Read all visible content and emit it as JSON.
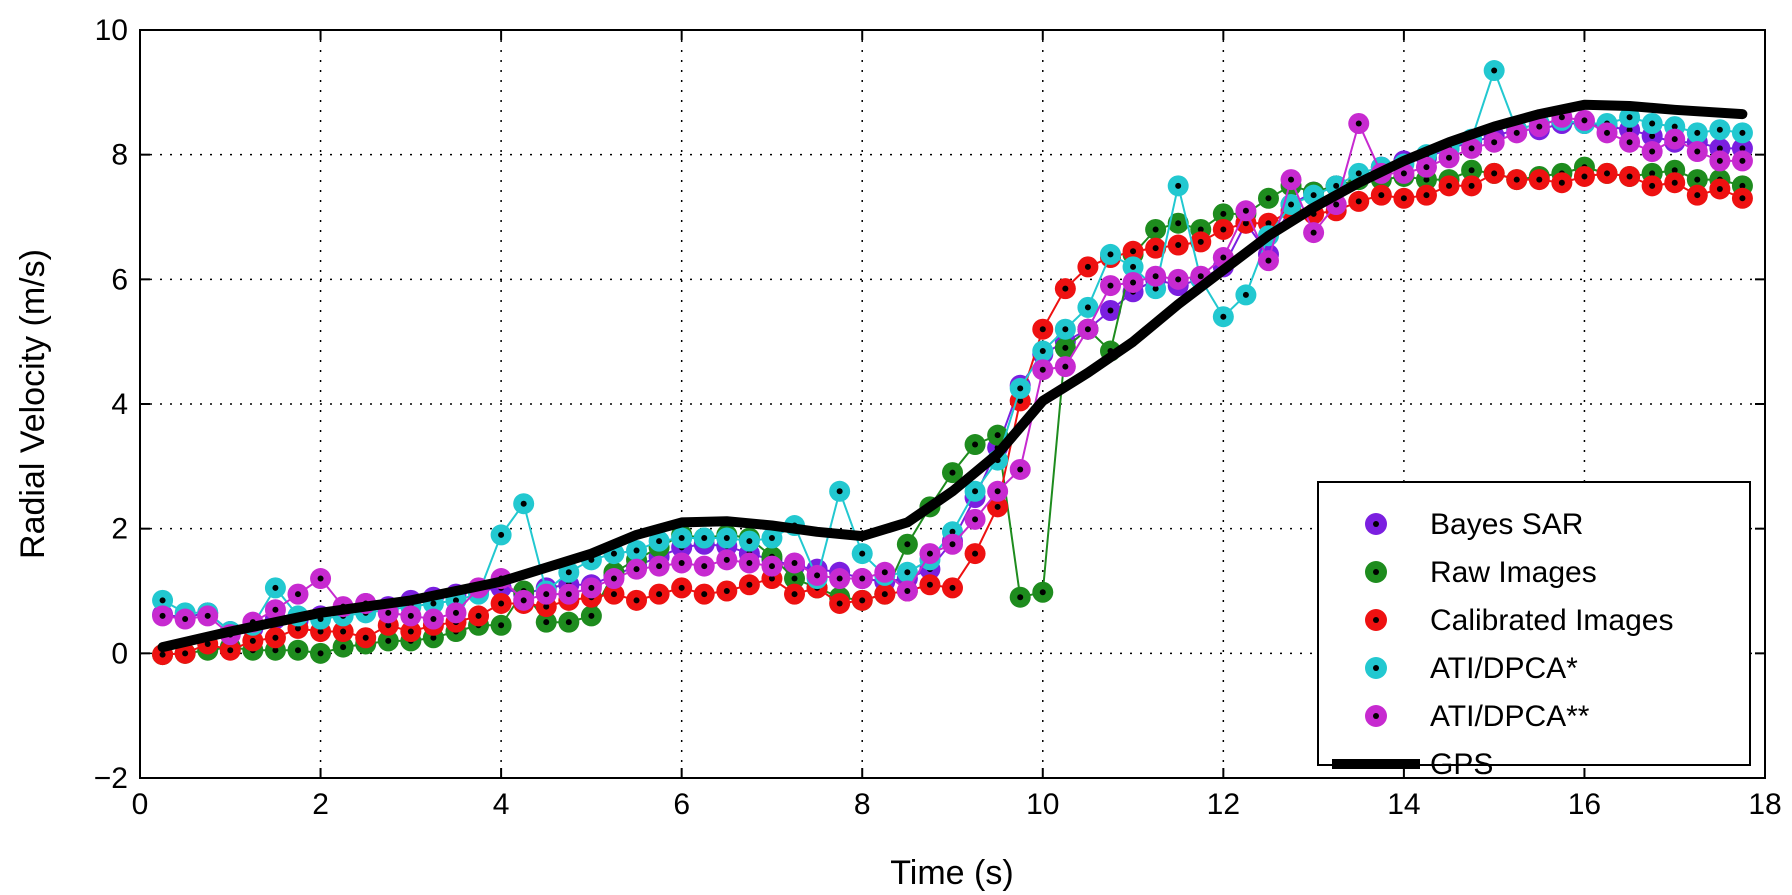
{
  "chart_data": {
    "type": "line",
    "title": "",
    "xlabel": "Time (s)",
    "ylabel": "Radial Velocity (m/s)",
    "xlim": [
      0,
      18
    ],
    "ylim": [
      -2,
      10
    ],
    "x_ticks": [
      0,
      2,
      4,
      6,
      8,
      10,
      12,
      14,
      16,
      18
    ],
    "y_ticks": [
      -2,
      0,
      2,
      4,
      6,
      8,
      10
    ],
    "grid": true,
    "legend_position": "bottom-right",
    "series": [
      {
        "name": "Bayes SAR",
        "color": "#7b1fe0",
        "marker": "circle",
        "x": [
          0.25,
          0.5,
          0.75,
          1,
          1.25,
          1.5,
          1.75,
          2,
          2.25,
          2.5,
          2.75,
          3,
          3.25,
          3.5,
          3.75,
          4,
          4.25,
          4.5,
          4.75,
          5,
          5.25,
          5.5,
          5.75,
          6,
          6.25,
          6.5,
          6.75,
          7,
          7.25,
          7.5,
          7.75,
          8,
          8.25,
          8.5,
          8.75,
          9,
          9.25,
          9.5,
          9.75,
          10,
          10.25,
          10.5,
          10.75,
          11,
          11.25,
          11.5,
          11.75,
          12,
          12.25,
          12.5,
          12.75,
          13,
          13.25,
          13.5,
          13.75,
          14,
          14.25,
          14.5,
          14.75,
          15,
          15.25,
          15.5,
          15.75,
          16,
          16.25,
          16.5,
          16.75,
          17,
          17.25,
          17.5,
          17.75
        ],
        "y": [
          0.62,
          0.58,
          0.65,
          0.35,
          0.4,
          0.55,
          0.52,
          0.6,
          0.7,
          0.8,
          0.75,
          0.85,
          0.9,
          0.95,
          1.0,
          1.05,
          0.95,
          1.05,
          1.1,
          1.1,
          1.25,
          1.4,
          1.55,
          1.7,
          1.75,
          1.72,
          1.6,
          1.5,
          1.4,
          1.35,
          1.3,
          1.2,
          1.15,
          1.2,
          1.35,
          1.8,
          2.5,
          3.3,
          4.3,
          4.8,
          5.0,
          5.2,
          5.5,
          5.8,
          6.0,
          5.9,
          6.0,
          6.2,
          6.9,
          6.4,
          7.2,
          7.4,
          7.5,
          7.6,
          7.8,
          7.9,
          7.95,
          8.1,
          8.2,
          8.3,
          8.4,
          8.4,
          8.5,
          8.5,
          8.45,
          8.4,
          8.3,
          8.2,
          8.2,
          8.1,
          8.1
        ]
      },
      {
        "name": "Raw Images",
        "color": "#1e8c1e",
        "marker": "circle",
        "x": [
          0.25,
          0.5,
          0.75,
          1,
          1.25,
          1.5,
          1.75,
          2,
          2.25,
          2.5,
          2.75,
          3,
          3.25,
          3.5,
          3.75,
          4,
          4.25,
          4.5,
          4.75,
          5,
          5.25,
          5.5,
          5.75,
          6,
          6.25,
          6.5,
          6.75,
          7,
          7.25,
          7.5,
          7.75,
          8,
          8.25,
          8.5,
          8.75,
          9,
          9.25,
          9.5,
          9.75,
          10,
          10.25,
          10.5,
          10.75,
          11,
          11.25,
          11.5,
          11.75,
          12,
          12.25,
          12.5,
          12.75,
          13,
          13.25,
          13.5,
          13.75,
          14,
          14.25,
          14.5,
          14.75,
          15,
          15.25,
          15.5,
          15.75,
          16,
          16.25,
          16.5,
          16.75,
          17,
          17.25,
          17.5,
          17.75
        ],
        "y": [
          -0.02,
          0.0,
          0.05,
          0.1,
          0.05,
          0.05,
          0.05,
          0.0,
          0.1,
          0.15,
          0.2,
          0.2,
          0.25,
          0.35,
          0.45,
          0.45,
          1.0,
          0.5,
          0.5,
          0.6,
          1.3,
          1.5,
          1.7,
          1.9,
          1.85,
          1.9,
          1.85,
          1.55,
          1.2,
          1.05,
          0.9,
          0.85,
          0.95,
          1.75,
          2.35,
          2.9,
          3.35,
          3.5,
          0.9,
          0.98,
          4.9,
          5.2,
          4.85,
          6.4,
          6.8,
          6.9,
          6.8,
          7.05,
          7.05,
          7.3,
          7.5,
          7.4,
          7.5,
          7.6,
          7.6,
          7.65,
          7.6,
          7.6,
          7.75,
          7.7,
          7.6,
          7.65,
          7.7,
          7.8,
          7.7,
          7.65,
          7.7,
          7.75,
          7.6,
          7.6,
          7.5
        ]
      },
      {
        "name": "Calibrated Images",
        "color": "#ee1111",
        "marker": "circle",
        "x": [
          0.25,
          0.5,
          0.75,
          1,
          1.25,
          1.5,
          1.75,
          2,
          2.25,
          2.5,
          2.75,
          3,
          3.25,
          3.5,
          3.75,
          4,
          4.25,
          4.5,
          4.75,
          5,
          5.25,
          5.5,
          5.75,
          6,
          6.25,
          6.5,
          6.75,
          7,
          7.25,
          7.5,
          7.75,
          8,
          8.25,
          8.5,
          8.75,
          9,
          9.25,
          9.5,
          9.75,
          10,
          10.25,
          10.5,
          10.75,
          11,
          11.25,
          11.5,
          11.75,
          12,
          12.25,
          12.5,
          12.75,
          13,
          13.25,
          13.5,
          13.75,
          14,
          14.25,
          14.5,
          14.75,
          15,
          15.25,
          15.5,
          15.75,
          16,
          16.25,
          16.5,
          16.75,
          17,
          17.25,
          17.5,
          17.75
        ],
        "y": [
          -0.02,
          0.0,
          0.15,
          0.05,
          0.2,
          0.25,
          0.4,
          0.35,
          0.35,
          0.25,
          0.45,
          0.35,
          0.45,
          0.5,
          0.6,
          0.8,
          0.8,
          0.75,
          0.85,
          0.9,
          0.95,
          0.85,
          0.95,
          1.05,
          0.95,
          1.0,
          1.1,
          1.2,
          0.95,
          1.05,
          0.8,
          0.85,
          0.95,
          1.0,
          1.1,
          1.05,
          1.6,
          2.35,
          4.05,
          5.2,
          5.85,
          6.2,
          6.35,
          6.45,
          6.5,
          6.55,
          6.6,
          6.8,
          6.9,
          6.9,
          7.1,
          7.05,
          7.1,
          7.25,
          7.35,
          7.3,
          7.35,
          7.5,
          7.5,
          7.7,
          7.6,
          7.6,
          7.55,
          7.65,
          7.7,
          7.65,
          7.5,
          7.55,
          7.35,
          7.45,
          7.3
        ]
      },
      {
        "name": "ATI/DPCA*",
        "color": "#22c8d0",
        "marker": "circle",
        "x": [
          0.25,
          0.5,
          0.75,
          1,
          1.25,
          1.5,
          1.75,
          2,
          2.25,
          2.5,
          2.75,
          3,
          3.25,
          3.5,
          3.75,
          4,
          4.25,
          4.5,
          4.75,
          5,
          5.25,
          5.5,
          5.75,
          6,
          6.25,
          6.5,
          6.75,
          7,
          7.25,
          7.5,
          7.75,
          8,
          8.25,
          8.5,
          8.75,
          9,
          9.25,
          9.5,
          9.75,
          10,
          10.25,
          10.5,
          10.75,
          11,
          11.25,
          11.5,
          11.75,
          12,
          12.25,
          12.5,
          12.75,
          13,
          13.25,
          13.5,
          13.75,
          14,
          14.25,
          14.5,
          14.75,
          15,
          15.25,
          15.5,
          15.75,
          16,
          16.25,
          16.5,
          16.75,
          17,
          17.25,
          17.5,
          17.75
        ],
        "y": [
          0.85,
          0.65,
          0.65,
          0.35,
          0.45,
          1.05,
          0.6,
          0.55,
          0.6,
          0.65,
          0.7,
          0.75,
          0.8,
          0.85,
          0.95,
          1.9,
          2.4,
          1.0,
          1.3,
          1.5,
          1.6,
          1.65,
          1.8,
          1.85,
          1.85,
          1.85,
          1.8,
          1.85,
          2.05,
          1.2,
          2.6,
          1.6,
          1.25,
          1.3,
          1.5,
          1.95,
          2.6,
          3.1,
          4.25,
          4.85,
          5.2,
          5.55,
          6.4,
          6.2,
          5.85,
          7.5,
          6.0,
          5.4,
          5.75,
          6.7,
          7.2,
          7.35,
          7.5,
          7.7,
          7.8,
          7.85,
          8.0,
          8.1,
          8.25,
          9.35,
          8.4,
          8.5,
          8.55,
          8.5,
          8.5,
          8.6,
          8.5,
          8.45,
          8.35,
          8.4,
          8.35
        ]
      },
      {
        "name": "ATI/DPCA**",
        "color": "#c72ad0",
        "marker": "circle",
        "x": [
          0.25,
          0.5,
          0.75,
          1,
          1.25,
          1.5,
          1.75,
          2,
          2.25,
          2.5,
          2.75,
          3,
          3.25,
          3.5,
          3.75,
          4,
          4.25,
          4.5,
          4.75,
          5,
          5.25,
          5.5,
          5.75,
          6,
          6.25,
          6.5,
          6.75,
          7,
          7.25,
          7.5,
          7.75,
          8,
          8.25,
          8.5,
          8.75,
          9,
          9.25,
          9.5,
          9.75,
          10,
          10.25,
          10.5,
          10.75,
          11,
          11.25,
          11.5,
          11.75,
          12,
          12.25,
          12.5,
          12.75,
          13,
          13.25,
          13.5,
          13.75,
          14,
          14.25,
          14.5,
          14.75,
          15,
          15.25,
          15.5,
          15.75,
          16,
          16.25,
          16.5,
          16.75,
          17,
          17.25,
          17.5,
          17.75
        ],
        "y": [
          0.6,
          0.55,
          0.6,
          0.3,
          0.5,
          0.7,
          0.95,
          1.2,
          0.75,
          0.8,
          0.65,
          0.6,
          0.55,
          0.65,
          1.05,
          1.2,
          0.85,
          0.95,
          0.95,
          1.05,
          1.2,
          1.35,
          1.4,
          1.45,
          1.4,
          1.5,
          1.45,
          1.4,
          1.45,
          1.25,
          1.2,
          1.2,
          1.3,
          1.0,
          1.6,
          1.75,
          2.15,
          2.6,
          2.95,
          4.55,
          4.6,
          5.2,
          5.9,
          5.95,
          6.05,
          6.0,
          6.05,
          6.35,
          7.1,
          6.3,
          7.6,
          6.75,
          7.2,
          8.5,
          7.7,
          7.7,
          7.8,
          7.95,
          8.1,
          8.2,
          8.35,
          8.45,
          8.6,
          8.55,
          8.35,
          8.2,
          8.05,
          8.25,
          8.05,
          7.9,
          7.9
        ]
      },
      {
        "name": "GPS",
        "color": "#000000",
        "marker": "none",
        "x": [
          0.25,
          1,
          2,
          3,
          4,
          5,
          5.5,
          6,
          6.5,
          7,
          7.5,
          8,
          8.5,
          9,
          9.5,
          10,
          10.5,
          11,
          11.5,
          12,
          12.5,
          13,
          13.5,
          14,
          14.5,
          15,
          15.5,
          16,
          16.5,
          17,
          17.75
        ],
        "y": [
          0.1,
          0.35,
          0.65,
          0.85,
          1.15,
          1.6,
          1.9,
          2.1,
          2.12,
          2.05,
          1.95,
          1.88,
          2.1,
          2.6,
          3.2,
          4.05,
          4.5,
          5.0,
          5.6,
          6.15,
          6.7,
          7.15,
          7.55,
          7.9,
          8.2,
          8.45,
          8.65,
          8.8,
          8.78,
          8.72,
          8.65
        ]
      }
    ]
  }
}
